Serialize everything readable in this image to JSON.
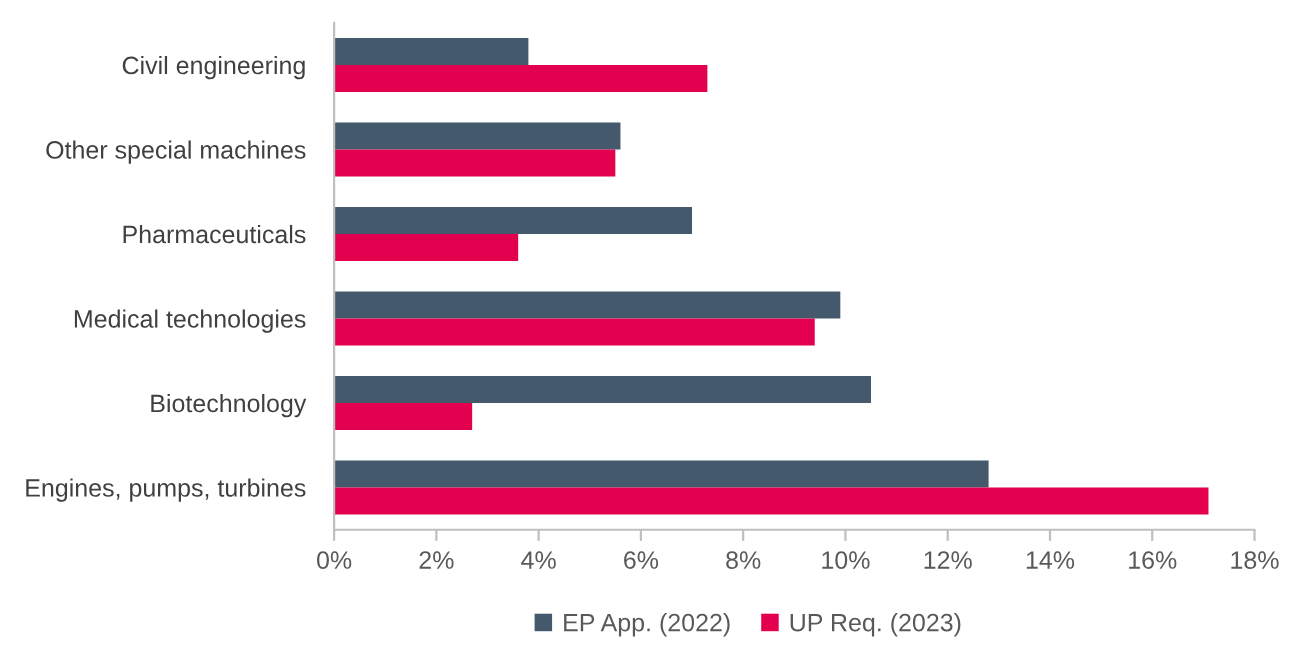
{
  "chart_data": {
    "type": "bar",
    "orientation": "horizontal",
    "categories": [
      "Civil engineering",
      "Other special machines",
      "Pharmaceuticals",
      "Medical technologies",
      "Biotechnology",
      "Engines, pumps, turbines"
    ],
    "series": [
      {
        "name": "EP App. (2022)",
        "color": "#44596b",
        "values": [
          3.8,
          5.6,
          7.0,
          9.9,
          10.5,
          12.8
        ]
      },
      {
        "name": "UP Req. (2023)",
        "color": "#e2004f",
        "values": [
          7.3,
          5.5,
          3.6,
          9.4,
          2.7,
          17.1
        ]
      }
    ],
    "xlim": [
      0,
      18
    ],
    "xticks": [
      {
        "value": 0,
        "label": "0%"
      },
      {
        "value": 2,
        "label": "2%"
      },
      {
        "value": 4,
        "label": "4%"
      },
      {
        "value": 6,
        "label": "6%"
      },
      {
        "value": 8,
        "label": "8%"
      },
      {
        "value": 10,
        "label": "10%"
      },
      {
        "value": 12,
        "label": "12%"
      },
      {
        "value": 14,
        "label": "14%"
      },
      {
        "value": 16,
        "label": "16%"
      },
      {
        "value": 18,
        "label": "18%"
      }
    ],
    "grid": false,
    "legend": "bottom"
  }
}
